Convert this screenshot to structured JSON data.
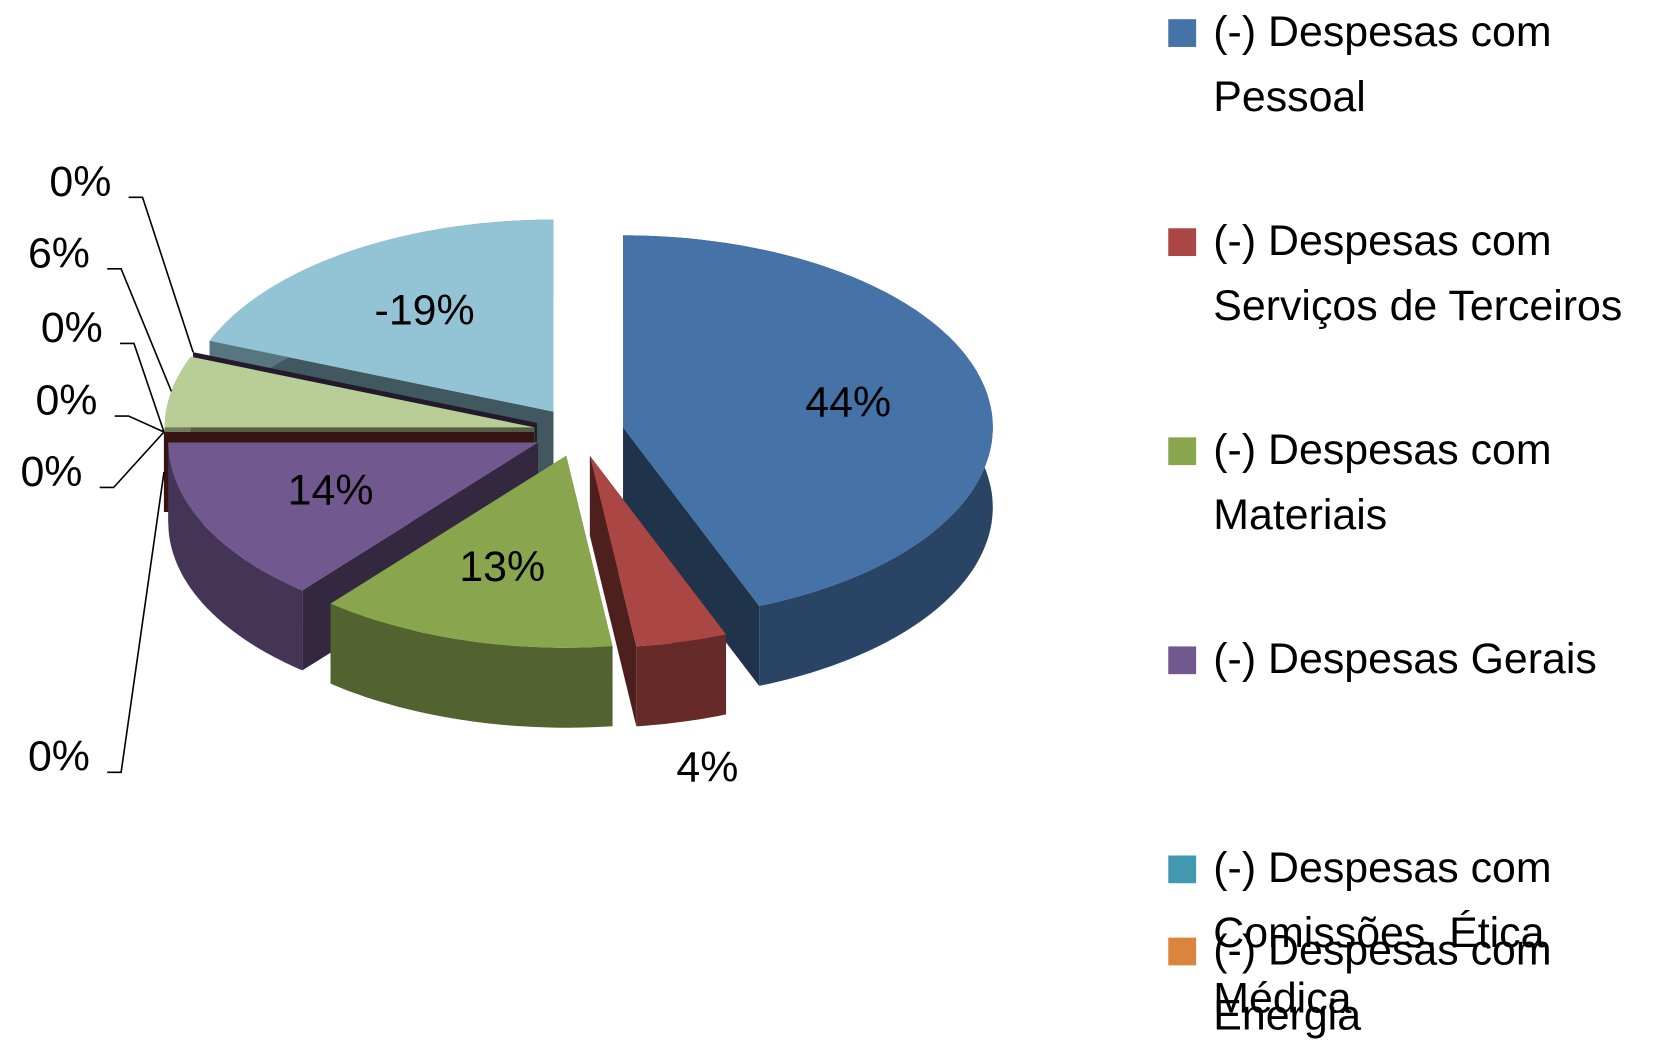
{
  "chart_data": {
    "type": "pie",
    "categories": [
      "(-) Despesas com Pessoal",
      "(-) Despesas com Serviços de Terceiros",
      "(-) Despesas com Materiais",
      "(-) Despesas Gerais",
      "(-) Despesas com Comissões, Ética Médica",
      "(-) Despesas com Energia",
      null,
      null,
      null,
      null,
      null
    ],
    "values": [
      44,
      4,
      13,
      14,
      0,
      0,
      0,
      0,
      6,
      0,
      -19
    ],
    "value_labels": [
      "44%",
      "4%",
      "13%",
      "14%",
      "0%",
      "0%",
      "0%",
      "0%",
      "6%",
      "0%",
      "-19%"
    ],
    "colors": [
      "#4572A7",
      "#AA4643",
      "#89A54E",
      "#71588F",
      "#4198AF",
      "#DB843D",
      "#2C4D75",
      "#772C2A",
      "#B9CD96",
      "#4D3B62",
      "#93C4D6"
    ],
    "legend": "right"
  }
}
